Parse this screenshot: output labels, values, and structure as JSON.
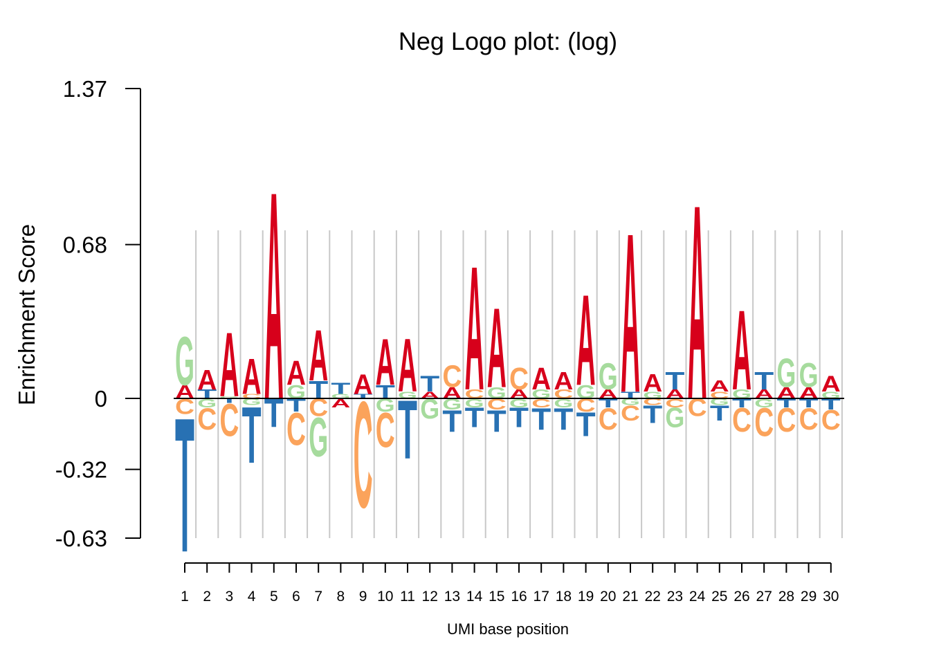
{
  "chart_data": {
    "type": "sequence-logo",
    "title": "Neg Logo plot: (log)",
    "xlabel": "UMI base position",
    "ylabel": "Enrichment Score",
    "yticks": [
      "1.37",
      "0.68",
      "0",
      "-0.32",
      "-0.63"
    ],
    "ytick_values": [
      1.37,
      0.68,
      0,
      -0.32,
      -0.63
    ],
    "ylim": [
      -0.63,
      1.37
    ],
    "grid": "vertical",
    "base_colors": {
      "A": "#d7001b",
      "C": "#fba35b",
      "G": "#a6db9d",
      "T": "#2871b3"
    },
    "positions": [
      1,
      2,
      3,
      4,
      5,
      6,
      7,
      8,
      9,
      10,
      11,
      12,
      13,
      14,
      15,
      16,
      17,
      18,
      19,
      20,
      21,
      22,
      23,
      24,
      25,
      26,
      27,
      28,
      29,
      30
    ],
    "heights": [
      {
        "pos": "1",
        "A": 0.06,
        "G": 0.22,
        "C": -0.07,
        "T": -0.62
      },
      {
        "pos": "2",
        "A": 0.09,
        "T": 0.04,
        "G": -0.04,
        "C": -0.1
      },
      {
        "pos": "3",
        "A": 0.29,
        "G": 0.01,
        "T": -0.02,
        "C": -0.15
      },
      {
        "pos": "4",
        "A": 0.16,
        "C": 0.02,
        "G": -0.03,
        "T": -0.26
      },
      {
        "pos": "5",
        "A": 0.94,
        "T": -0.13
      },
      {
        "pos": "6",
        "A": 0.11,
        "G": 0.06,
        "T": -0.06,
        "C": -0.15
      },
      {
        "pos": "7",
        "A": 0.23,
        "T": 0.08,
        "C": -0.08,
        "G": -0.18
      },
      {
        "pos": "8",
        "T": 0.05,
        "G": 0.02,
        "A": -0.04
      },
      {
        "pos": "9",
        "A": 0.09,
        "T": 0.02,
        "C": -0.49
      },
      {
        "pos": "10",
        "A": 0.21,
        "T": 0.06,
        "G": -0.06,
        "C": -0.16
      },
      {
        "pos": "11",
        "A": 0.24,
        "G": 0.03,
        "T": -0.27
      },
      {
        "pos": "12",
        "T": 0.07,
        "A": 0.03,
        "G": -0.09
      },
      {
        "pos": "13",
        "C": 0.1,
        "A": 0.05,
        "G": -0.05,
        "T": -0.1
      },
      {
        "pos": "14",
        "A": 0.56,
        "C": 0.04,
        "G": -0.04,
        "T": -0.09
      },
      {
        "pos": "15",
        "A": 0.36,
        "G": 0.05,
        "C": -0.05,
        "T": -0.1
      },
      {
        "pos": "16",
        "C": 0.1,
        "A": 0.04,
        "G": -0.04,
        "T": -0.09
      },
      {
        "pos": "17",
        "A": 0.1,
        "G": 0.04,
        "C": -0.04,
        "T": -0.1
      },
      {
        "pos": "18",
        "A": 0.08,
        "C": 0.04,
        "G": -0.04,
        "T": -0.1
      },
      {
        "pos": "19",
        "A": 0.41,
        "G": 0.06,
        "C": -0.06,
        "T": -0.11
      },
      {
        "pos": "20",
        "G": 0.12,
        "A": 0.04,
        "T": -0.04,
        "C": -0.1
      },
      {
        "pos": "21",
        "A": 0.72,
        "T": 0.03,
        "G": -0.03,
        "C": -0.07
      },
      {
        "pos": "22",
        "A": 0.08,
        "G": 0.03,
        "C": -0.03,
        "T": -0.08
      },
      {
        "pos": "23",
        "T": 0.08,
        "A": 0.04,
        "C": -0.04,
        "G": -0.09
      },
      {
        "pos": "24",
        "A": 0.88,
        "C": -0.08
      },
      {
        "pos": "25",
        "A": 0.05,
        "C": 0.03,
        "G": -0.03,
        "T": -0.07
      },
      {
        "pos": "26",
        "A": 0.36,
        "G": 0.04,
        "T": -0.04,
        "C": -0.11
      },
      {
        "pos": "27",
        "T": 0.08,
        "A": 0.04,
        "G": -0.04,
        "C": -0.13
      },
      {
        "pos": "28",
        "G": 0.13,
        "A": 0.05,
        "T": -0.04,
        "C": -0.11
      },
      {
        "pos": "29",
        "G": 0.11,
        "A": 0.05,
        "T": -0.04,
        "C": -0.1
      },
      {
        "pos": "30",
        "A": 0.07,
        "G": 0.03,
        "T": -0.05,
        "C": -0.09
      }
    ]
  }
}
